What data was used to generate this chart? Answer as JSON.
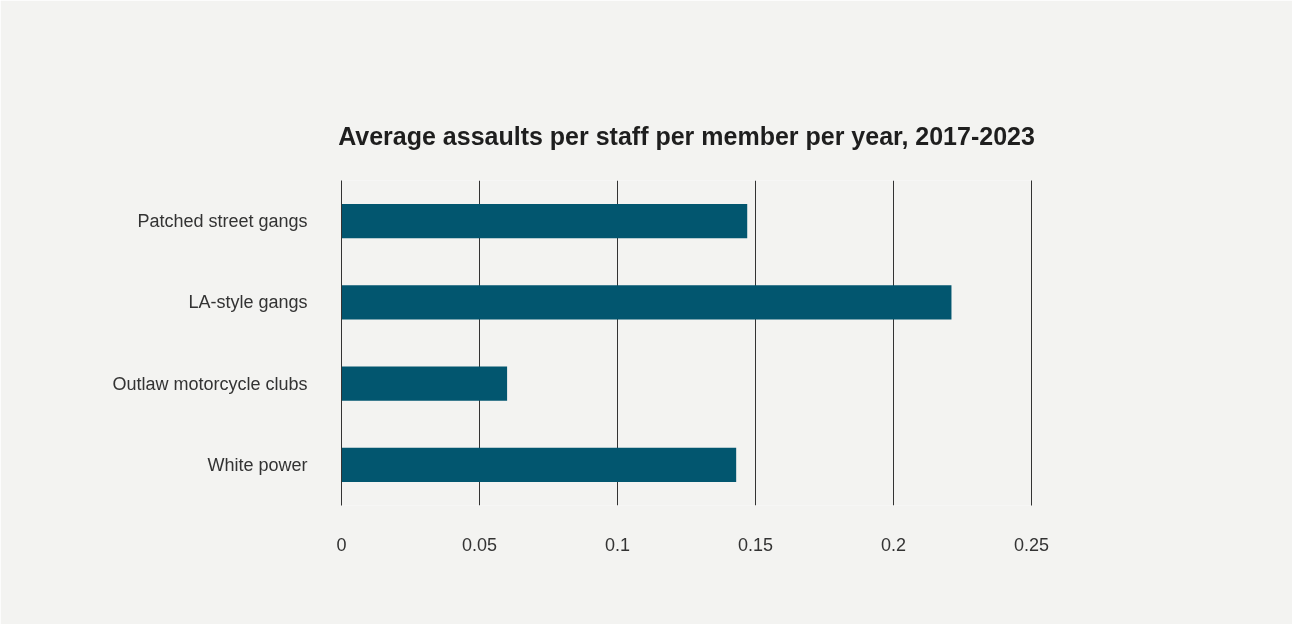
{
  "chart_data": {
    "type": "bar",
    "orientation": "horizontal",
    "title": "Average assaults per staff per member per year, 2017-2023",
    "categories": [
      "Patched street gangs",
      "LA-style gangs",
      "Outlaw motorcycle clubs",
      "White power"
    ],
    "values": [
      0.147,
      0.221,
      0.06,
      0.143
    ],
    "color": "#02566f",
    "xlim": [
      0,
      0.25
    ],
    "xticks": [
      0,
      0.05,
      0.1,
      0.15,
      0.2,
      0.25
    ],
    "grid": "x"
  }
}
